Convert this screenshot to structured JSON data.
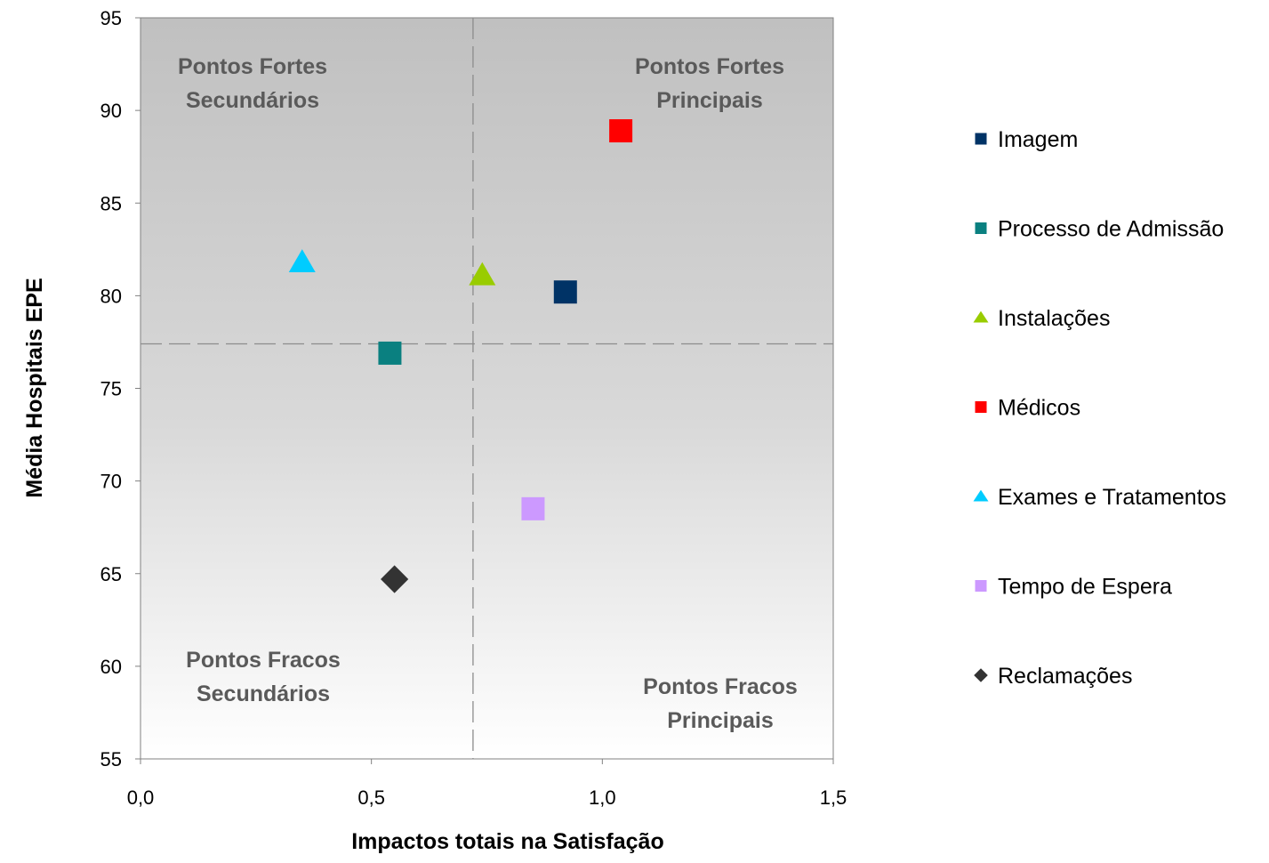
{
  "chart_data": {
    "type": "scatter",
    "xlabel": "Impactos totais na Satisfação",
    "ylabel": "Média Hospitais EPE",
    "xlim": [
      0,
      1.5
    ],
    "ylim": [
      55,
      95
    ],
    "x_ticks": [
      "0,0",
      "0,5",
      "1,0",
      "1,5"
    ],
    "y_ticks": [
      "55",
      "60",
      "65",
      "70",
      "75",
      "80",
      "85",
      "90",
      "95"
    ],
    "x_tick_values": [
      0,
      0.5,
      1.0,
      1.5
    ],
    "y_tick_values": [
      55,
      60,
      65,
      70,
      75,
      80,
      85,
      90,
      95
    ],
    "grid": false,
    "legend_position": "right",
    "reference_lines": {
      "x": 0.72,
      "y": 77.4
    },
    "quadrant_labels": [
      {
        "name": "quadrant-top-left",
        "lines": [
          "Pontos Fortes",
          "Secundários"
        ]
      },
      {
        "name": "quadrant-top-right",
        "lines": [
          "Pontos Fortes",
          "Principais"
        ]
      },
      {
        "name": "quadrant-bottom-left",
        "lines": [
          "Pontos Fracos",
          "Secundários"
        ]
      },
      {
        "name": "quadrant-bottom-right",
        "lines": [
          "Pontos Fracos",
          "Principais"
        ]
      }
    ],
    "series": [
      {
        "name": "Imagem",
        "x": 0.92,
        "y": 80.2,
        "marker": "square",
        "color": "#003366"
      },
      {
        "name": "Processo de Admissão",
        "x": 0.54,
        "y": 76.9,
        "marker": "square",
        "color": "#0a8080"
      },
      {
        "name": "Instalações",
        "x": 0.74,
        "y": 81.1,
        "marker": "triangle",
        "color": "#99cc00"
      },
      {
        "name": "Médicos",
        "x": 1.04,
        "y": 88.9,
        "marker": "square",
        "color": "#ff0000"
      },
      {
        "name": "Exames e Tratamentos",
        "x": 0.35,
        "y": 81.8,
        "marker": "triangle",
        "color": "#00ccff"
      },
      {
        "name": "Tempo de Espera",
        "x": 0.85,
        "y": 68.5,
        "marker": "square",
        "color": "#cc99ff"
      },
      {
        "name": "Reclamações",
        "x": 0.55,
        "y": 64.7,
        "marker": "diamond",
        "color": "#333333"
      }
    ]
  }
}
